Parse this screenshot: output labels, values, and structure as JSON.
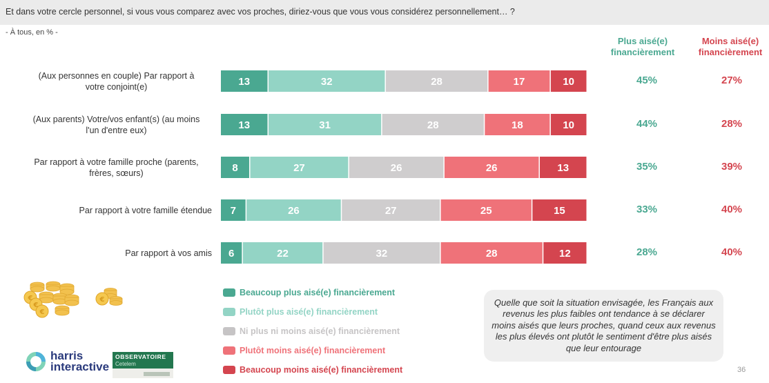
{
  "header": {
    "question": "Et dans votre cercle personnel, si vous vous comparez avec vos proches, diriez-vous que vous vous considérez personnellement… ?",
    "base": "- À tous, en % -"
  },
  "columns": {
    "plus_label": "Plus aisé(e) financièrement",
    "moins_label": "Moins aisé(e) financièrement",
    "plus_color": "#4aa891",
    "moins_color": "#d4454f"
  },
  "chart_data": {
    "type": "bar",
    "orientation": "horizontal-stacked-100",
    "title": "Et dans votre cercle personnel, si vous vous comparez avec vos proches, diriez-vous que vous vous considérez personnellement… ?",
    "subtitle": "- À tous, en % -",
    "xlabel": "",
    "ylabel": "",
    "xlim": [
      0,
      100
    ],
    "grid": false,
    "legend_position": "bottom",
    "categories": [
      "(Aux personnes en couple) Par rapport à votre conjoint(e)",
      "(Aux parents) Votre/vos enfant(s) (au moins l'un d'entre eux)",
      "Par rapport à votre famille proche (parents, frères, sœurs)",
      "Par rapport à votre famille étendue",
      "Par rapport à vos amis"
    ],
    "series": [
      {
        "name": "Beaucoup plus aisé(e) financièrement",
        "color": "#4aa891",
        "values": [
          13,
          13,
          8,
          7,
          6
        ]
      },
      {
        "name": "Plutôt plus aisé(e) financièrement",
        "color": "#93d4c5",
        "values": [
          32,
          31,
          27,
          26,
          22
        ]
      },
      {
        "name": "Ni plus ni moins aisé(e) financièrement",
        "color": "#cfcdce",
        "values": [
          28,
          28,
          26,
          27,
          32
        ]
      },
      {
        "name": "Plutôt moins aisé(e) financièrement",
        "color": "#ef7279",
        "values": [
          17,
          18,
          26,
          25,
          28
        ]
      },
      {
        "name": "Beaucoup moins aisé(e) financièrement",
        "color": "#d4454f",
        "values": [
          10,
          10,
          13,
          15,
          12
        ]
      }
    ],
    "totals": {
      "plus": [
        "45%",
        "44%",
        "35%",
        "33%",
        "28%"
      ],
      "moins": [
        "27%",
        "28%",
        "39%",
        "40%",
        "40%"
      ]
    }
  },
  "rows": [
    {
      "label_line1": "(Aux personnes en couple) Par rapport à",
      "label_line2": "votre conjoint(e)"
    },
    {
      "label_line1": "(Aux parents) Votre/vos enfant(s) (au moins",
      "label_line2": "l'un d'entre eux)"
    },
    {
      "label_line1": "Par rapport à votre famille proche (parents,",
      "label_line2": "frères, sœurs)"
    },
    {
      "label_line1": "Par rapport à votre famille étendue",
      "label_line2": ""
    },
    {
      "label_line1": "Par rapport à vos amis",
      "label_line2": ""
    }
  ],
  "legend": [
    {
      "label": "Beaucoup plus aisé(e) financièrement",
      "color": "#4aa891"
    },
    {
      "label": "Plutôt plus aisé(e) financièrement",
      "color": "#93d4c5"
    },
    {
      "label": "Ni plus ni moins aisé(e) financièrement",
      "color": "#c6c4c5"
    },
    {
      "label": "Plutôt moins aisé(e) financièrement",
      "color": "#ef7279"
    },
    {
      "label": "Beaucoup moins aisé(e) financièrement",
      "color": "#d4454f"
    }
  ],
  "callout": {
    "text": "Quelle que soit la situation envisagée, les Français aux revenus les plus faibles ont tendance à se déclarer moins aisés que leurs proches, quand ceux aux revenus les plus élevés ont plutôt le sentiment d'être plus aisés que leur entourage"
  },
  "footer": {
    "harris_line1": "harris",
    "harris_line2": "interactive",
    "obs_title": "OBSERVATOIRE",
    "obs_subtitle": "Cetelem",
    "page_number": "36"
  },
  "icons": {
    "coins_large": "euro-coins-pile-icon",
    "coins_small": "euro-coins-small-icon"
  }
}
